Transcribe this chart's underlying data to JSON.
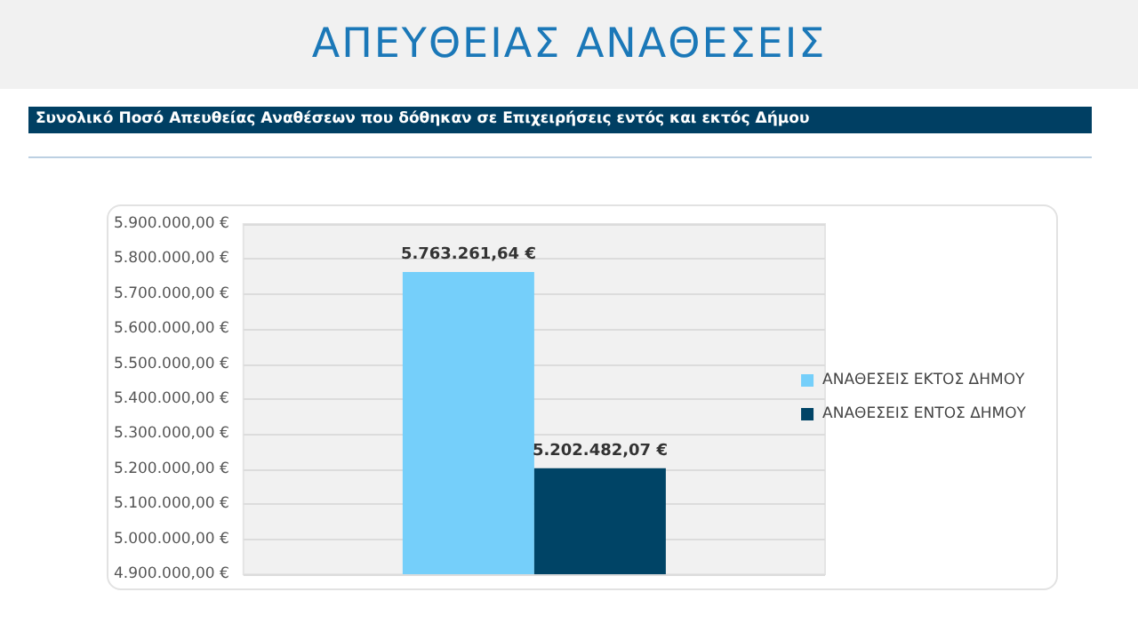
{
  "chart_data": {
    "type": "bar",
    "title": "ΑΠΕΥΘΕΙΑΣ ΑΝΑΘΕΣΕΙΣ",
    "subtitle": "Συνολικό Ποσό Απευθείας Αναθέσεων που δόθηκαν σε Επιχειρήσεις εντός και εκτός Δήμου",
    "categories": [
      null
    ],
    "series": [
      {
        "name": "ΑΝΑΘΕΣΕΙΣ ΕΚΤΟΣ ΔΗΜΟΥ",
        "color": "#75cffa",
        "values": [
          5763261.64
        ],
        "value_labels": [
          "5.763.261,64 €"
        ]
      },
      {
        "name": "ΑΝΑΘΕΣΕΙΣ ΕΝΤΟΣ ΔΗΜΟΥ",
        "color": "#004466",
        "values": [
          5202482.07
        ],
        "value_labels": [
          "5.202.482,07 €"
        ]
      }
    ],
    "ylim": [
      4900000,
      5900000
    ],
    "yticks": [
      {
        "value": 4900000,
        "label": "4.900.000,00 €"
      },
      {
        "value": 5000000,
        "label": "5.000.000,00 €"
      },
      {
        "value": 5100000,
        "label": "5.100.000,00 €"
      },
      {
        "value": 5200000,
        "label": "5.200.000,00 €"
      },
      {
        "value": 5300000,
        "label": "5.300.000,00 €"
      },
      {
        "value": 5400000,
        "label": "5.400.000,00 €"
      },
      {
        "value": 5500000,
        "label": "5.500.000,00 €"
      },
      {
        "value": 5600000,
        "label": "5.600.000,00 €"
      },
      {
        "value": 5700000,
        "label": "5.700.000,00 €"
      },
      {
        "value": 5800000,
        "label": "5.800.000,00 €"
      },
      {
        "value": 5900000,
        "label": "5.900.000,00 €"
      }
    ],
    "grid": "y",
    "legend": "right"
  }
}
